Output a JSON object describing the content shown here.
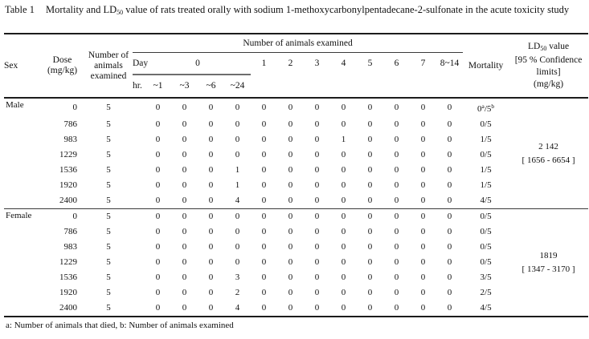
{
  "title": {
    "label": "Table 1",
    "text_pre": "Mortality and LD",
    "subscript": "50",
    "text_post": " value of rats treated orally with sodium 1-methoxycarbonylpentadecane-2-sulfonate in the acute toxicity study"
  },
  "header": {
    "sex": "Sex",
    "dose_line1": "Dose",
    "dose_line2": "(mg/kg)",
    "n_line1": "Number of",
    "n_line2": "animals",
    "n_line3": "examined",
    "animals_examined_span": "Number of animals examined",
    "day_label": "Day",
    "day0": "0",
    "hr_label": "hr.",
    "hr_cols": [
      "~1",
      "~3",
      "~6",
      "~24"
    ],
    "day_cols": [
      "1",
      "2",
      "3",
      "4",
      "5",
      "6",
      "7",
      "8~14"
    ],
    "mortality": "Mortality",
    "ld50_line1_pre": "LD",
    "ld50_sub": "50",
    "ld50_line1_post": " value",
    "ld50_line2": "[95 % Confidence",
    "ld50_line3": "limits]",
    "ld50_line4": "(mg/kg)"
  },
  "sections": [
    {
      "sex": "Male",
      "ld50": {
        "value": "2 142",
        "ci": "[ 1656 - 6654 ]"
      },
      "rows": [
        {
          "dose": "0",
          "n": "5",
          "counts": [
            "0",
            "0",
            "0",
            "0",
            "0",
            "0",
            "0",
            "0",
            "0",
            "0",
            "0",
            "0"
          ],
          "mortality": {
            "value": "0",
            "sup_a": "a",
            "denom": "/5",
            "sup_b": "b"
          }
        },
        {
          "dose": "786",
          "n": "5",
          "counts": [
            "0",
            "0",
            "0",
            "0",
            "0",
            "0",
            "0",
            "0",
            "0",
            "0",
            "0",
            "0"
          ],
          "mortality": "0/5"
        },
        {
          "dose": "983",
          "n": "5",
          "counts": [
            "0",
            "0",
            "0",
            "0",
            "0",
            "0",
            "0",
            "1",
            "0",
            "0",
            "0",
            "0"
          ],
          "mortality": "1/5"
        },
        {
          "dose": "1229",
          "n": "5",
          "counts": [
            "0",
            "0",
            "0",
            "0",
            "0",
            "0",
            "0",
            "0",
            "0",
            "0",
            "0",
            "0"
          ],
          "mortality": "0/5"
        },
        {
          "dose": "1536",
          "n": "5",
          "counts": [
            "0",
            "0",
            "0",
            "1",
            "0",
            "0",
            "0",
            "0",
            "0",
            "0",
            "0",
            "0"
          ],
          "mortality": "1/5"
        },
        {
          "dose": "1920",
          "n": "5",
          "counts": [
            "0",
            "0",
            "0",
            "1",
            "0",
            "0",
            "0",
            "0",
            "0",
            "0",
            "0",
            "0"
          ],
          "mortality": "1/5"
        },
        {
          "dose": "2400",
          "n": "5",
          "counts": [
            "0",
            "0",
            "0",
            "4",
            "0",
            "0",
            "0",
            "0",
            "0",
            "0",
            "0",
            "0"
          ],
          "mortality": "4/5"
        }
      ]
    },
    {
      "sex": "Female",
      "ld50": {
        "value": "1819",
        "ci": "[ 1347 - 3170 ]"
      },
      "rows": [
        {
          "dose": "0",
          "n": "5",
          "counts": [
            "0",
            "0",
            "0",
            "0",
            "0",
            "0",
            "0",
            "0",
            "0",
            "0",
            "0",
            "0"
          ],
          "mortality": "0/5"
        },
        {
          "dose": "786",
          "n": "5",
          "counts": [
            "0",
            "0",
            "0",
            "0",
            "0",
            "0",
            "0",
            "0",
            "0",
            "0",
            "0",
            "0"
          ],
          "mortality": "0/5"
        },
        {
          "dose": "983",
          "n": "5",
          "counts": [
            "0",
            "0",
            "0",
            "0",
            "0",
            "0",
            "0",
            "0",
            "0",
            "0",
            "0",
            "0"
          ],
          "mortality": "0/5"
        },
        {
          "dose": "1229",
          "n": "5",
          "counts": [
            "0",
            "0",
            "0",
            "0",
            "0",
            "0",
            "0",
            "0",
            "0",
            "0",
            "0",
            "0"
          ],
          "mortality": "0/5"
        },
        {
          "dose": "1536",
          "n": "5",
          "counts": [
            "0",
            "0",
            "0",
            "3",
            "0",
            "0",
            "0",
            "0",
            "0",
            "0",
            "0",
            "0"
          ],
          "mortality": "3/5"
        },
        {
          "dose": "1920",
          "n": "5",
          "counts": [
            "0",
            "0",
            "0",
            "2",
            "0",
            "0",
            "0",
            "0",
            "0",
            "0",
            "0",
            "0"
          ],
          "mortality": "2/5"
        },
        {
          "dose": "2400",
          "n": "5",
          "counts": [
            "0",
            "0",
            "0",
            "4",
            "0",
            "0",
            "0",
            "0",
            "0",
            "0",
            "0",
            "0"
          ],
          "mortality": "4/5"
        }
      ]
    }
  ],
  "footnote": "a: Number of animals that died, b: Number of animals examined"
}
